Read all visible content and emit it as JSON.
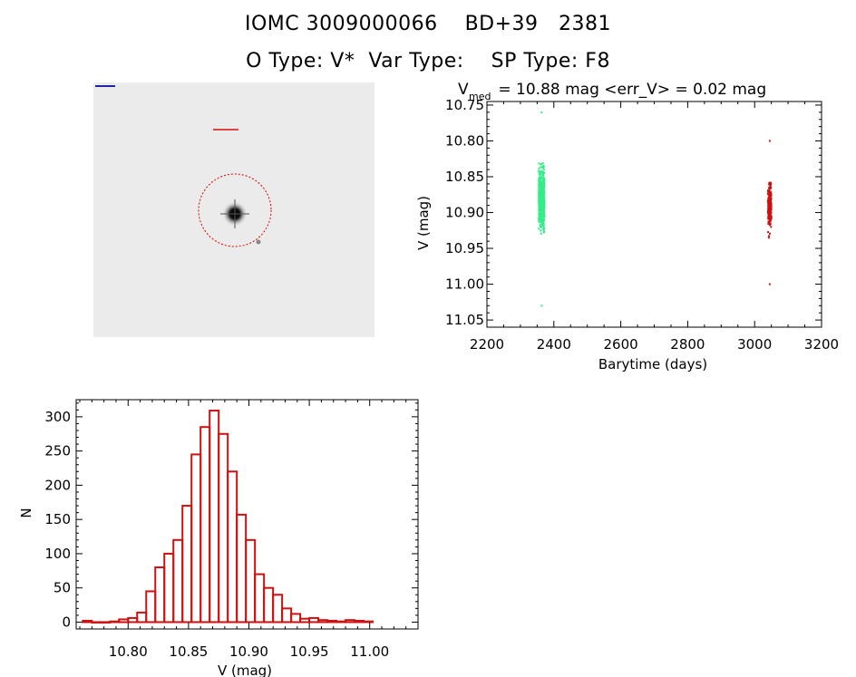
{
  "header": {
    "line1": "IOMC 3009000066    BD+39   2381",
    "line2": "O Type: V*  Var Type:    SP Type: F8"
  },
  "colors": {
    "series_early": "#33ee88",
    "series_late": "#cc1111",
    "histogram": "#cc1111",
    "aperture": "#dd0000"
  },
  "chart_data": [
    {
      "type": "scatter",
      "title_main": "V",
      "title_sub": "med",
      "title_rest": " = 10.88 mag <err_V> = 0.02 mag",
      "xlabel": "Barytime (days)",
      "ylabel": "V (mag)",
      "xlim": [
        2200,
        3200
      ],
      "ylim": [
        11.06,
        10.745
      ],
      "y_inverted": true,
      "x_ticks": [
        "2200",
        "2400",
        "2600",
        "2800",
        "3000",
        "3200"
      ],
      "y_ticks": [
        "10.75",
        "10.80",
        "10.85",
        "10.90",
        "10.95",
        "11.00",
        "11.05"
      ],
      "series": [
        {
          "x_range": [
            2355,
            2372
          ],
          "y_range": [
            10.76,
            11.03
          ],
          "y_center": 10.88,
          "y_spread": 0.025
        },
        {
          "x_range": [
            3040,
            3050
          ],
          "y_range": [
            10.8,
            11.0
          ],
          "y_center": 10.89,
          "y_spread": 0.02
        }
      ]
    },
    {
      "type": "bar",
      "xlabel": "V (mag)",
      "ylabel": "N",
      "xlim": [
        10.757,
        11.04
      ],
      "ylim": [
        -10,
        325
      ],
      "x_ticks": [
        "10.80",
        "10.85",
        "10.90",
        "10.95",
        "11.00"
      ],
      "y_ticks": [
        "0",
        "50",
        "100",
        "150",
        "200",
        "250",
        "300"
      ],
      "bin_start": 10.7625,
      "bin_width": 0.0075,
      "values": [
        2,
        0,
        0,
        1,
        4,
        6,
        14,
        45,
        80,
        100,
        120,
        170,
        245,
        285,
        309,
        275,
        220,
        157,
        120,
        70,
        50,
        40,
        20,
        12,
        5,
        6,
        3,
        2,
        1,
        3,
        2,
        1
      ]
    }
  ]
}
